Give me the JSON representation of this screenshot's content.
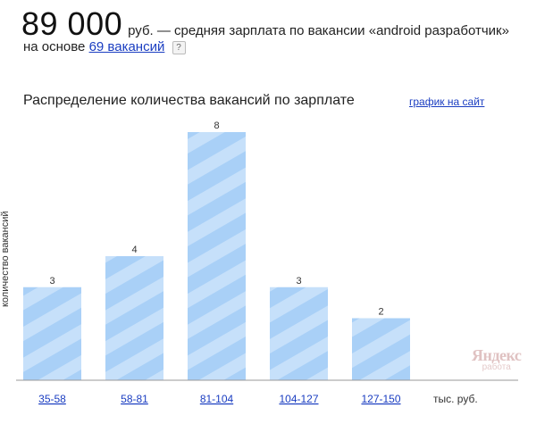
{
  "header": {
    "salary_value": "89 000",
    "salary_desc": "руб. — средняя зарплата по вакансии «android разработчик»",
    "basis_prefix": "на основе",
    "basis_link": "69 вакансий",
    "help_symbol": "?"
  },
  "chart_section": {
    "title": "Распределение количества вакансий по зарплате",
    "embed_link": "график на сайт"
  },
  "chart_data": {
    "type": "bar",
    "categories": [
      "35-58",
      "58-81",
      "81-104",
      "104-127",
      "127-150"
    ],
    "values": [
      3,
      4,
      8,
      3,
      2
    ],
    "ylabel": "количество вакансий",
    "xlabel": "",
    "x_unit": "тыс. руб.",
    "ylim": [
      0,
      8
    ],
    "grid": false,
    "bar_color": "#a9d0f7",
    "stripe_color": "#c6e0fa"
  },
  "logo": {
    "name": "Яндекс",
    "sub": "работа"
  }
}
